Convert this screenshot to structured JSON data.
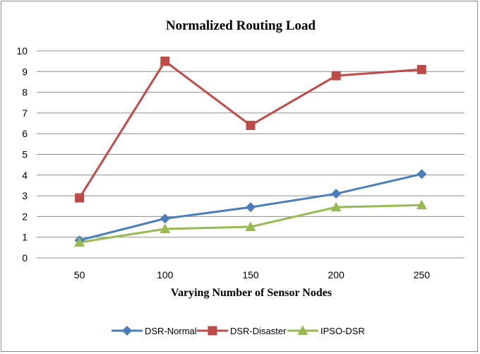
{
  "chart_data": {
    "type": "line",
    "title": "Normalized Routing Load",
    "xlabel": "Varying Number of Sensor Nodes",
    "ylabel": "",
    "categories": [
      "50",
      "100",
      "150",
      "200",
      "250"
    ],
    "ylim": [
      0,
      10
    ],
    "yticks": [
      "0",
      "1",
      "2",
      "3",
      "4",
      "5",
      "6",
      "7",
      "8",
      "9",
      "10"
    ],
    "grid": true,
    "legend": "bottom",
    "series": [
      {
        "name": "DSR-Normal",
        "values": [
          0.85,
          1.9,
          2.45,
          3.1,
          4.05
        ],
        "color": "#4a7ebb",
        "marker": "diamond"
      },
      {
        "name": "DSR-Disaster",
        "values": [
          2.9,
          9.5,
          6.4,
          8.8,
          9.1
        ],
        "color": "#be4b48",
        "marker": "square"
      },
      {
        "name": "IPSO-DSR",
        "values": [
          0.75,
          1.4,
          1.5,
          2.45,
          2.55
        ],
        "color": "#98b954",
        "marker": "triangle"
      }
    ]
  }
}
